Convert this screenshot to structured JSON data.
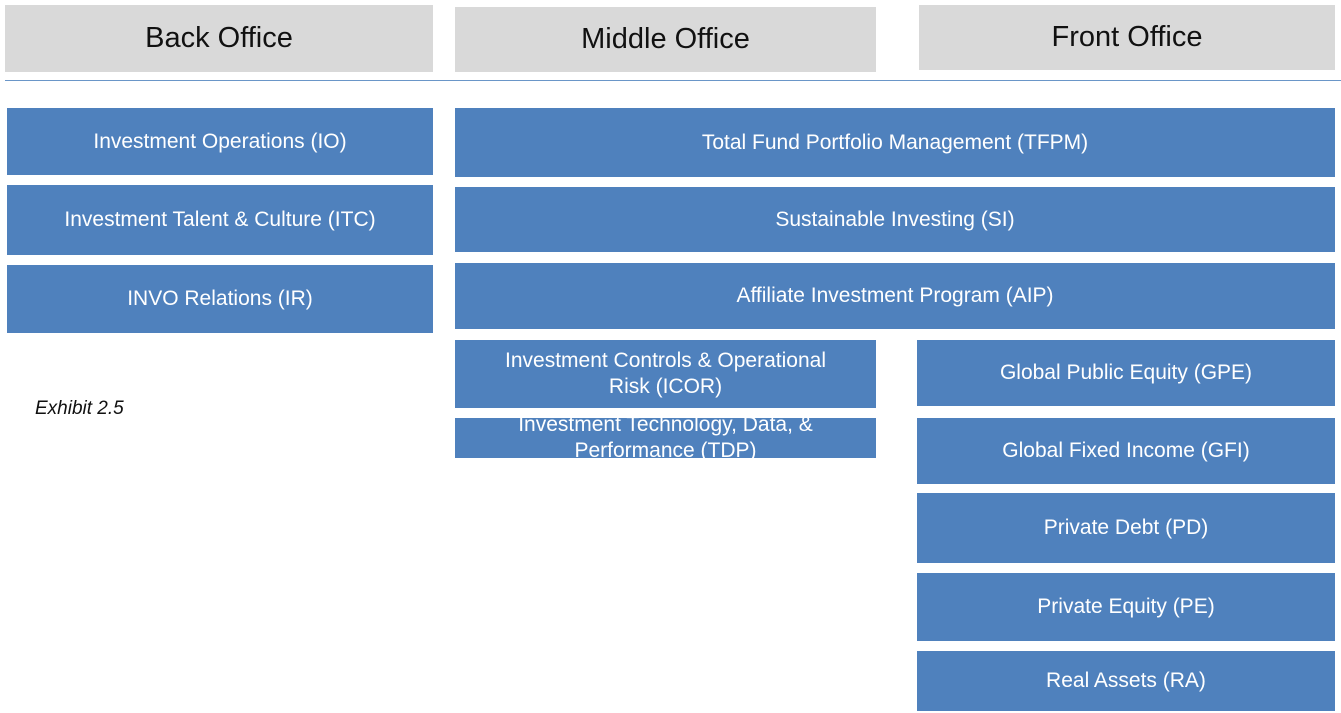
{
  "headers": [
    "Back Office",
    "Middle Office",
    "Front Office"
  ],
  "boxes": [
    "Investment Operations (IO)",
    "Investment Talent & Culture (ITC)",
    "INVO Relations (IR)",
    "Total Fund Portfolio Management (TFPM)",
    "Sustainable Investing (SI)",
    "Affiliate Investment Program (AIP)",
    "Investment Controls & Operational Risk (ICOR)",
    "Investment Technology, Data, & Performance (TDP)",
    "Global Public Equity (GPE)",
    "Global Fixed Income (GFI)",
    "Private Debt (PD)",
    "Private Equity (PE)",
    "Real Assets (RA)"
  ],
  "exhibit": "Exhibit 2.5"
}
